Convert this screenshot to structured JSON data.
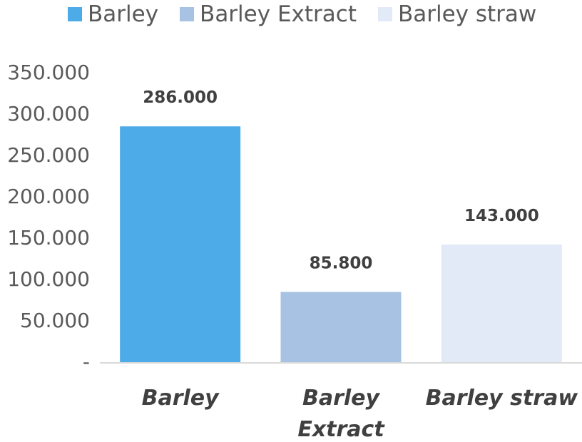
{
  "chart_data": {
    "type": "bar",
    "categories": [
      "Barley",
      "Barley Extract",
      "Barley straw"
    ],
    "category_lines": [
      [
        "Barley"
      ],
      [
        "Barley",
        "Extract"
      ],
      [
        "Barley straw"
      ]
    ],
    "values": [
      286.0,
      85.8,
      143.0
    ],
    "data_labels": [
      "286.000",
      "85.800",
      "143.000"
    ],
    "colors": [
      "#4DABE8",
      "#A7C2E2",
      "#E1EAF6"
    ],
    "legend": [
      {
        "label": "Barley",
        "color": "#4DABE8"
      },
      {
        "label": "Barley Extract",
        "color": "#A7C2E2"
      },
      {
        "label": "Barley straw",
        "color": "#E1EAF6"
      }
    ],
    "legend_position": "top",
    "y_ticks": [
      0,
      50,
      100,
      150,
      200,
      250,
      300,
      350
    ],
    "y_tick_labels": [
      "-",
      "50.000",
      "100.000",
      "150.000",
      "200.000",
      "250.000",
      "300.000",
      "350.000"
    ],
    "ylim": [
      0,
      350
    ],
    "grid": false,
    "title": "",
    "xlabel": "",
    "ylabel": ""
  }
}
